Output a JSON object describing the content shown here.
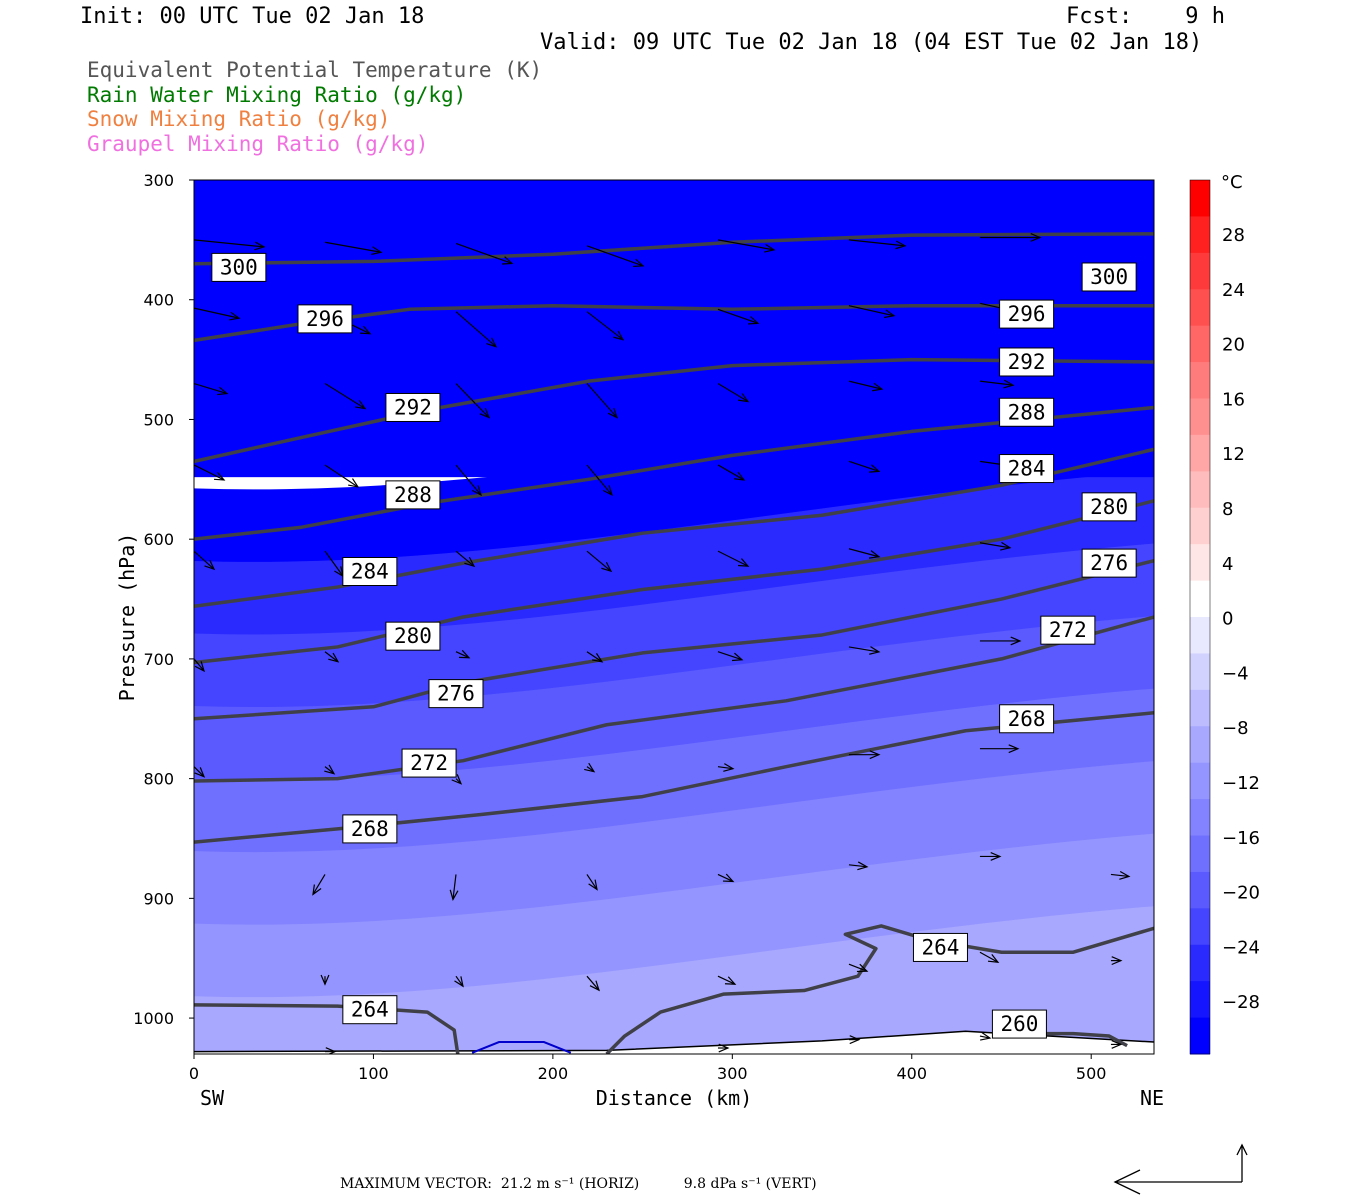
{
  "header": {
    "init": "Init: 00 UTC Tue 02 Jan 18",
    "fcst": "Fcst:    9 h",
    "valid": "Valid: 09 UTC Tue 02 Jan 18 (04 EST Tue 02 Jan 18)"
  },
  "legend": [
    {
      "text": "Equivalent Potential Temperature (K)",
      "color": "#555555"
    },
    {
      "text": "Rain Water Mixing Ratio (g/kg)",
      "color": "#007a00"
    },
    {
      "text": "Snow Mixing Ratio (g/kg)",
      "color": "#f08040"
    },
    {
      "text": "Graupel Mixing Ratio (g/kg)",
      "color": "#f070e0"
    }
  ],
  "chart_data": {
    "type": "cross-section",
    "xlabel": "Distance (km)",
    "ylabel": "Pressure (hPa)",
    "xlim": [
      0,
      535
    ],
    "ylim": [
      1030,
      300
    ],
    "x_ticks": [
      "0",
      "100",
      "200",
      "300",
      "400",
      "500"
    ],
    "x_tick_values": [
      0,
      100,
      200,
      300,
      400,
      500
    ],
    "y_ticks": [
      "300",
      "400",
      "500",
      "600",
      "700",
      "800",
      "900",
      "1000"
    ],
    "y_tick_values": [
      300,
      400,
      500,
      600,
      700,
      800,
      900,
      1000
    ],
    "left_end_label": "SW",
    "right_end_label": "NE",
    "contour_lines": [
      {
        "level": "300",
        "points": [
          [
            0,
            370
          ],
          [
            100,
            368
          ],
          [
            200,
            362
          ],
          [
            300,
            352
          ],
          [
            400,
            346
          ],
          [
            535,
            345
          ]
        ]
      },
      {
        "level": "296",
        "points": [
          [
            0,
            434
          ],
          [
            60,
            420
          ],
          [
            120,
            408
          ],
          [
            200,
            405
          ],
          [
            300,
            408
          ],
          [
            400,
            405
          ],
          [
            535,
            405
          ]
        ]
      },
      {
        "level": "292",
        "points": [
          [
            0,
            535
          ],
          [
            60,
            515
          ],
          [
            130,
            492
          ],
          [
            220,
            468
          ],
          [
            300,
            455
          ],
          [
            400,
            450
          ],
          [
            535,
            452
          ]
        ]
      },
      {
        "level": "288",
        "points": [
          [
            0,
            600
          ],
          [
            60,
            590
          ],
          [
            130,
            570
          ],
          [
            220,
            550
          ],
          [
            300,
            530
          ],
          [
            400,
            510
          ],
          [
            535,
            490
          ]
        ]
      },
      {
        "level": "284",
        "points": [
          [
            0,
            656
          ],
          [
            80,
            640
          ],
          [
            150,
            620
          ],
          [
            250,
            595
          ],
          [
            350,
            580
          ],
          [
            450,
            555
          ],
          [
            535,
            525
          ]
        ]
      },
      {
        "level": "280",
        "points": [
          [
            0,
            703
          ],
          [
            80,
            690
          ],
          [
            150,
            665
          ],
          [
            250,
            642
          ],
          [
            350,
            625
          ],
          [
            450,
            600
          ],
          [
            535,
            568
          ]
        ]
      },
      {
        "level": "276",
        "points": [
          [
            0,
            750
          ],
          [
            100,
            740
          ],
          [
            150,
            720
          ],
          [
            250,
            695
          ],
          [
            350,
            680
          ],
          [
            450,
            650
          ],
          [
            535,
            618
          ]
        ]
      },
      {
        "level": "272",
        "points": [
          [
            0,
            802
          ],
          [
            80,
            800
          ],
          [
            150,
            785
          ],
          [
            230,
            755
          ],
          [
            330,
            735
          ],
          [
            450,
            700
          ],
          [
            535,
            665
          ]
        ]
      },
      {
        "level": "268",
        "points": [
          [
            0,
            853
          ],
          [
            80,
            842
          ],
          [
            160,
            830
          ],
          [
            250,
            815
          ],
          [
            330,
            790
          ],
          [
            430,
            760
          ],
          [
            535,
            745
          ]
        ]
      },
      {
        "level": "264",
        "points": [
          [
            0,
            989
          ],
          [
            80,
            990
          ],
          [
            130,
            995
          ],
          [
            145,
            1010
          ],
          [
            147,
            1030
          ]
        ]
      },
      {
        "level": "264",
        "points": [
          [
            230,
            1030
          ],
          [
            240,
            1015
          ],
          [
            260,
            995
          ],
          [
            295,
            980
          ],
          [
            340,
            977
          ],
          [
            370,
            965
          ],
          [
            380,
            942
          ],
          [
            363,
            930
          ],
          [
            383,
            923
          ],
          [
            410,
            935
          ],
          [
            450,
            945
          ],
          [
            490,
            945
          ],
          [
            535,
            925
          ]
        ]
      },
      {
        "level": "260",
        "points": [
          [
            445,
            1013
          ],
          [
            490,
            1013
          ],
          [
            510,
            1015
          ],
          [
            520,
            1023
          ]
        ]
      }
    ],
    "contour_labels": [
      {
        "level": "300",
        "x": 25,
        "p": 373
      },
      {
        "level": "300",
        "x": 510,
        "p": 381
      },
      {
        "level": "296",
        "x": 73,
        "p": 416
      },
      {
        "level": "296",
        "x": 464,
        "p": 412
      },
      {
        "level": "292",
        "x": 122,
        "p": 490
      },
      {
        "level": "292",
        "x": 464,
        "p": 452
      },
      {
        "level": "288",
        "x": 122,
        "p": 563
      },
      {
        "level": "288",
        "x": 464,
        "p": 494
      },
      {
        "level": "284",
        "x": 98,
        "p": 627
      },
      {
        "level": "284",
        "x": 464,
        "p": 541
      },
      {
        "level": "280",
        "x": 510,
        "p": 573
      },
      {
        "level": "276",
        "x": 510,
        "p": 620
      },
      {
        "level": "280",
        "x": 122,
        "p": 681
      },
      {
        "level": "272",
        "x": 487,
        "p": 676
      },
      {
        "level": "276",
        "x": 146,
        "p": 729
      },
      {
        "level": "268",
        "x": 464,
        "p": 750
      },
      {
        "level": "272",
        "x": 131,
        "p": 787
      },
      {
        "level": "268",
        "x": 98,
        "p": 842
      },
      {
        "level": "264",
        "x": 416,
        "p": 941
      },
      {
        "level": "264",
        "x": 98,
        "p": 993
      },
      {
        "level": "260",
        "x": 460,
        "p": 1005
      }
    ],
    "temperature_field": {
      "unit": "°C",
      "top_to_bottom_colors": [
        "#0000ff",
        "#2a2aff",
        "#4545ff",
        "#5a5aff",
        "#7070ff",
        "#8383ff",
        "#9595ff",
        "#a8a8ff"
      ]
    },
    "wind_vectors": [
      {
        "x": 0,
        "p": 350,
        "dx": 70,
        "dy": 7
      },
      {
        "x": 73,
        "p": 352,
        "dx": 56,
        "dy": 10
      },
      {
        "x": 146,
        "p": 353,
        "dx": 56,
        "dy": 20
      },
      {
        "x": 219,
        "p": 355,
        "dx": 56,
        "dy": 20
      },
      {
        "x": 292,
        "p": 350,
        "dx": 56,
        "dy": 10
      },
      {
        "x": 365,
        "p": 350,
        "dx": 56,
        "dy": 6
      },
      {
        "x": 438,
        "p": 348,
        "dx": 60,
        "dy": 0
      },
      {
        "x": 0,
        "p": 407,
        "dx": 45,
        "dy": 10
      },
      {
        "x": 73,
        "p": 410,
        "dx": 45,
        "dy": 22
      },
      {
        "x": 146,
        "p": 410,
        "dx": 40,
        "dy": 35
      },
      {
        "x": 219,
        "p": 410,
        "dx": 36,
        "dy": 28
      },
      {
        "x": 292,
        "p": 408,
        "dx": 40,
        "dy": 14
      },
      {
        "x": 365,
        "p": 405,
        "dx": 45,
        "dy": 10
      },
      {
        "x": 438,
        "p": 403,
        "dx": 45,
        "dy": 10
      },
      {
        "x": 0,
        "p": 470,
        "dx": 33,
        "dy": 10
      },
      {
        "x": 73,
        "p": 470,
        "dx": 40,
        "dy": 25
      },
      {
        "x": 146,
        "p": 470,
        "dx": 33,
        "dy": 34
      },
      {
        "x": 219,
        "p": 470,
        "dx": 30,
        "dy": 34
      },
      {
        "x": 292,
        "p": 470,
        "dx": 30,
        "dy": 18
      },
      {
        "x": 365,
        "p": 468,
        "dx": 33,
        "dy": 8
      },
      {
        "x": 438,
        "p": 468,
        "dx": 33,
        "dy": 4
      },
      {
        "x": 0,
        "p": 538,
        "dx": 30,
        "dy": 15
      },
      {
        "x": 73,
        "p": 538,
        "dx": 33,
        "dy": 22
      },
      {
        "x": 146,
        "p": 538,
        "dx": 25,
        "dy": 30
      },
      {
        "x": 219,
        "p": 538,
        "dx": 25,
        "dy": 30
      },
      {
        "x": 292,
        "p": 538,
        "dx": 26,
        "dy": 15
      },
      {
        "x": 365,
        "p": 535,
        "dx": 30,
        "dy": 10
      },
      {
        "x": 438,
        "p": 535,
        "dx": 35,
        "dy": 5
      },
      {
        "x": 0,
        "p": 610,
        "dx": 20,
        "dy": 18
      },
      {
        "x": 73,
        "p": 610,
        "dx": 18,
        "dy": 25
      },
      {
        "x": 146,
        "p": 610,
        "dx": 18,
        "dy": 15
      },
      {
        "x": 219,
        "p": 610,
        "dx": 24,
        "dy": 20
      },
      {
        "x": 292,
        "p": 610,
        "dx": 30,
        "dy": 15
      },
      {
        "x": 365,
        "p": 608,
        "dx": 30,
        "dy": 8
      },
      {
        "x": 438,
        "p": 603,
        "dx": 30,
        "dy": 5
      },
      {
        "x": 0,
        "p": 700,
        "dx": 10,
        "dy": 12
      },
      {
        "x": 73,
        "p": 694,
        "dx": 13,
        "dy": 10
      },
      {
        "x": 146,
        "p": 694,
        "dx": 13,
        "dy": 6
      },
      {
        "x": 219,
        "p": 694,
        "dx": 15,
        "dy": 10
      },
      {
        "x": 292,
        "p": 694,
        "dx": 24,
        "dy": 8
      },
      {
        "x": 365,
        "p": 690,
        "dx": 30,
        "dy": 5
      },
      {
        "x": 438,
        "p": 685,
        "dx": 40,
        "dy": 0
      },
      {
        "x": 0,
        "p": 790,
        "dx": 10,
        "dy": 10
      },
      {
        "x": 73,
        "p": 790,
        "dx": 9,
        "dy": 7
      },
      {
        "x": 146,
        "p": 800,
        "dx": 5,
        "dy": 5
      },
      {
        "x": 219,
        "p": 790,
        "dx": 7,
        "dy": 5
      },
      {
        "x": 292,
        "p": 790,
        "dx": 15,
        "dy": 2
      },
      {
        "x": 365,
        "p": 780,
        "dx": 30,
        "dy": 0
      },
      {
        "x": 438,
        "p": 775,
        "dx": 38,
        "dy": 0
      },
      {
        "x": 73,
        "p": 880,
        "dx": -12,
        "dy": 20
      },
      {
        "x": 146,
        "p": 880,
        "dx": -3,
        "dy": 25
      },
      {
        "x": 219,
        "p": 880,
        "dx": 10,
        "dy": 15
      },
      {
        "x": 292,
        "p": 880,
        "dx": 15,
        "dy": 7
      },
      {
        "x": 365,
        "p": 872,
        "dx": 18,
        "dy": 2
      },
      {
        "x": 438,
        "p": 865,
        "dx": 20,
        "dy": 0
      },
      {
        "x": 511,
        "p": 880,
        "dx": 18,
        "dy": 2
      },
      {
        "x": 73,
        "p": 965,
        "dx": 0,
        "dy": 8
      },
      {
        "x": 146,
        "p": 965,
        "dx": 7,
        "dy": 10
      },
      {
        "x": 219,
        "p": 965,
        "dx": 12,
        "dy": 14
      },
      {
        "x": 292,
        "p": 965,
        "dx": 17,
        "dy": 8
      },
      {
        "x": 365,
        "p": 955,
        "dx": 18,
        "dy": 7
      },
      {
        "x": 438,
        "p": 945,
        "dx": 18,
        "dy": 10
      },
      {
        "x": 511,
        "p": 952,
        "dx": 10,
        "dy": 0
      },
      {
        "x": 73,
        "p": 1028,
        "dx": 10,
        "dy": 0
      },
      {
        "x": 292,
        "p": 1025,
        "dx": 10,
        "dy": 0
      },
      {
        "x": 365,
        "p": 1018,
        "dx": 10,
        "dy": 0
      },
      {
        "x": 438,
        "p": 1015,
        "dx": 10,
        "dy": 2
      },
      {
        "x": 511,
        "p": 1022,
        "dx": 10,
        "dy": 0
      }
    ]
  },
  "colorbar": {
    "unit": "°C",
    "labels": [
      "28",
      "24",
      "20",
      "16",
      "12",
      "8",
      "4",
      "0",
      "−4",
      "−8",
      "−12",
      "−16",
      "−20",
      "−24",
      "−28"
    ],
    "colors": [
      "#ff0000",
      "#ff2020",
      "#ff3a3a",
      "#ff5050",
      "#ff6666",
      "#ff7c7c",
      "#ff9090",
      "#ffa6a6",
      "#ffbcbc",
      "#ffd0d0",
      "#ffe6e6",
      "#ffffff",
      "#e8e8ff",
      "#d2d2ff",
      "#bcbcff",
      "#a8a8ff",
      "#9595ff",
      "#8383ff",
      "#7070ff",
      "#5a5aff",
      "#4545ff",
      "#2a2aff",
      "#1515ff",
      "#0000ff"
    ]
  },
  "footer": {
    "max_vector": "MAXIMUM VECTOR:  21.2 m s⁻¹ (HORIZ)          9.8 dPa s⁻¹ (VERT)"
  }
}
